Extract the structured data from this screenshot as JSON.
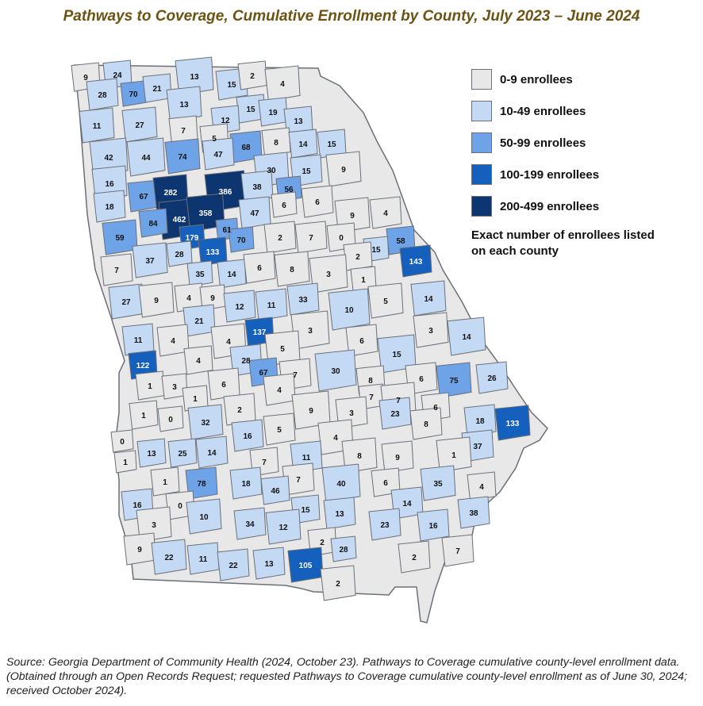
{
  "title": "Pathways to Coverage, Cumulative Enrollment by County, July 2023 – June 2024",
  "legend": [
    {
      "label": "0-9 enrollees",
      "color": "#e8e8e8"
    },
    {
      "label": "10-49 enrollees",
      "color": "#c4d9f4"
    },
    {
      "label": "50-99 enrollees",
      "color": "#6fa3e8"
    },
    {
      "label": "100-199 enrollees",
      "color": "#1560bd"
    },
    {
      "label": "200-499 enrollees",
      "color": "#0d3570"
    }
  ],
  "note": "Exact number of enrollees listed on each county",
  "source": "Source: Georgia Department of Community Health (2024, October 23). Pathways to Coverage cumulative county-level enrollment data. (Obtained through an Open Records Request; requested Pathways to Coverage cumulative county-level enrollment as of June 30, 2024; received October 2024).",
  "counties": [
    {
      "value": "9"
    },
    {
      "value": "24"
    },
    {
      "value": "70"
    },
    {
      "value": "28"
    },
    {
      "value": "21"
    },
    {
      "value": "13"
    },
    {
      "value": "15"
    },
    {
      "value": "2"
    },
    {
      "value": "4"
    },
    {
      "value": "13"
    },
    {
      "value": "11"
    },
    {
      "value": "27"
    },
    {
      "value": "15"
    },
    {
      "value": "19"
    },
    {
      "value": "12"
    },
    {
      "value": "13"
    },
    {
      "value": "7"
    },
    {
      "value": "5"
    },
    {
      "value": "8"
    },
    {
      "value": "68"
    },
    {
      "value": "14"
    },
    {
      "value": "15"
    },
    {
      "value": "42"
    },
    {
      "value": "44"
    },
    {
      "value": "74"
    },
    {
      "value": "47"
    },
    {
      "value": "30"
    },
    {
      "value": "15"
    },
    {
      "value": "9"
    },
    {
      "value": "16"
    },
    {
      "value": "67"
    },
    {
      "value": "282"
    },
    {
      "value": "386"
    },
    {
      "value": "38"
    },
    {
      "value": "56"
    },
    {
      "value": "6"
    },
    {
      "value": "18"
    },
    {
      "value": "462"
    },
    {
      "value": "358"
    },
    {
      "value": "6"
    },
    {
      "value": "9"
    },
    {
      "value": "4"
    },
    {
      "value": "47"
    },
    {
      "value": "59"
    },
    {
      "value": "84"
    },
    {
      "value": "179"
    },
    {
      "value": "61"
    },
    {
      "value": "70"
    },
    {
      "value": "2"
    },
    {
      "value": "7"
    },
    {
      "value": "0"
    },
    {
      "value": "58"
    },
    {
      "value": "15"
    },
    {
      "value": "143"
    },
    {
      "value": "2"
    },
    {
      "value": "28"
    },
    {
      "value": "133"
    },
    {
      "value": "37"
    },
    {
      "value": "7"
    },
    {
      "value": "35"
    },
    {
      "value": "14"
    },
    {
      "value": "6"
    },
    {
      "value": "8"
    },
    {
      "value": "3"
    },
    {
      "value": "1"
    },
    {
      "value": "5"
    },
    {
      "value": "27"
    },
    {
      "value": "9"
    },
    {
      "value": "4"
    },
    {
      "value": "9"
    },
    {
      "value": "12"
    },
    {
      "value": "11"
    },
    {
      "value": "33"
    },
    {
      "value": "14"
    },
    {
      "value": "10"
    },
    {
      "value": "21"
    },
    {
      "value": "137"
    },
    {
      "value": "3"
    },
    {
      "value": "3"
    },
    {
      "value": "11"
    },
    {
      "value": "4"
    },
    {
      "value": "4"
    },
    {
      "value": "5"
    },
    {
      "value": "6"
    },
    {
      "value": "14"
    },
    {
      "value": "15"
    },
    {
      "value": "122"
    },
    {
      "value": "4"
    },
    {
      "value": "28"
    },
    {
      "value": "30"
    },
    {
      "value": "67"
    },
    {
      "value": "7"
    },
    {
      "value": "75"
    },
    {
      "value": "26"
    },
    {
      "value": "1"
    },
    {
      "value": "3"
    },
    {
      "value": "6"
    },
    {
      "value": "1"
    },
    {
      "value": "8"
    },
    {
      "value": "7"
    },
    {
      "value": "6"
    },
    {
      "value": "4"
    },
    {
      "value": "9"
    },
    {
      "value": "3"
    },
    {
      "value": "7"
    },
    {
      "value": "2"
    },
    {
      "value": "1"
    },
    {
      "value": "0"
    },
    {
      "value": "32"
    },
    {
      "value": "23"
    },
    {
      "value": "6"
    },
    {
      "value": "18"
    },
    {
      "value": "133"
    },
    {
      "value": "16"
    },
    {
      "value": "5"
    },
    {
      "value": "4"
    },
    {
      "value": "8"
    },
    {
      "value": "37"
    },
    {
      "value": "0"
    },
    {
      "value": "1"
    },
    {
      "value": "13"
    },
    {
      "value": "25"
    },
    {
      "value": "14"
    },
    {
      "value": "11"
    },
    {
      "value": "8"
    },
    {
      "value": "9"
    },
    {
      "value": "1"
    },
    {
      "value": "7"
    },
    {
      "value": "7"
    },
    {
      "value": "1"
    },
    {
      "value": "78"
    },
    {
      "value": "18"
    },
    {
      "value": "46"
    },
    {
      "value": "40"
    },
    {
      "value": "6"
    },
    {
      "value": "35"
    },
    {
      "value": "4"
    },
    {
      "value": "16"
    },
    {
      "value": "0"
    },
    {
      "value": "15"
    },
    {
      "value": "13"
    },
    {
      "value": "14"
    },
    {
      "value": "38"
    },
    {
      "value": "3"
    },
    {
      "value": "10"
    },
    {
      "value": "34"
    },
    {
      "value": "12"
    },
    {
      "value": "23"
    },
    {
      "value": "16"
    },
    {
      "value": "2"
    },
    {
      "value": "9"
    },
    {
      "value": "22"
    },
    {
      "value": "11"
    },
    {
      "value": "22"
    },
    {
      "value": "13"
    },
    {
      "value": "105"
    },
    {
      "value": "2"
    },
    {
      "value": "7"
    },
    {
      "value": "28"
    },
    {
      "value": "2"
    }
  ]
}
